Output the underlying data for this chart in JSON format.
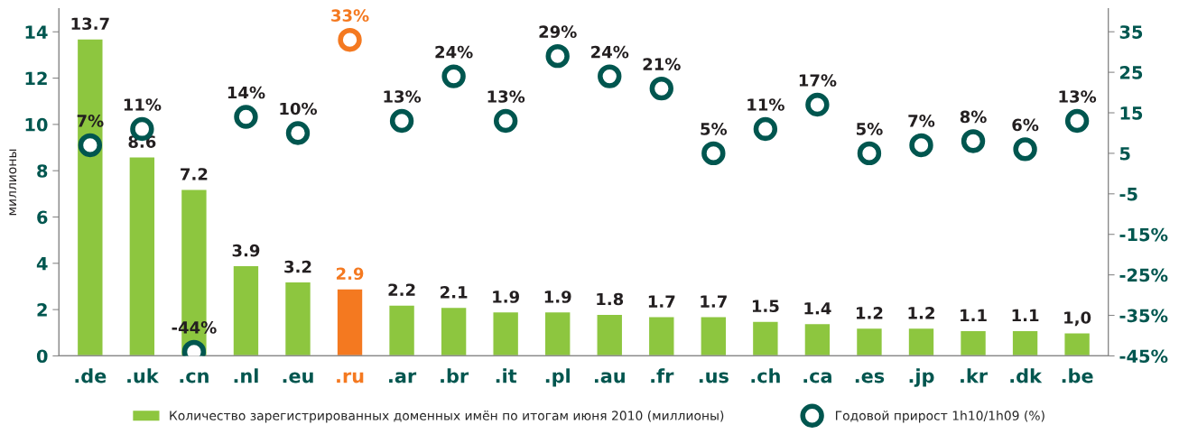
{
  "chart_data": {
    "type": "bar",
    "ylabel": "миллионы",
    "categories": [
      ".de",
      ".uk",
      ".cn",
      ".nl",
      ".eu",
      ".ru",
      ".ar",
      ".br",
      ".it",
      ".pl",
      ".au",
      ".fr",
      ".us",
      ".ch",
      ".ca",
      ".es",
      ".jp",
      ".kr",
      ".dk",
      ".be"
    ],
    "series": [
      {
        "name": "Количество зарегистрированных доменных имён по итогам июня 2010 (миллионы)",
        "color": "#8dc63f",
        "colors": [
          "#8dc63f",
          "#8dc63f",
          "#8dc63f",
          "#8dc63f",
          "#8dc63f",
          "#f47920",
          "#8dc63f",
          "#8dc63f",
          "#8dc63f",
          "#8dc63f",
          "#8dc63f",
          "#8dc63f",
          "#8dc63f",
          "#8dc63f",
          "#8dc63f",
          "#8dc63f",
          "#8dc63f",
          "#8dc63f",
          "#8dc63f",
          "#8dc63f"
        ],
        "values": [
          13.7,
          8.6,
          7.2,
          3.9,
          3.2,
          2.9,
          2.2,
          2.1,
          1.9,
          1.9,
          1.8,
          1.7,
          1.7,
          1.5,
          1.4,
          1.2,
          1.2,
          1.1,
          1.1,
          1.0
        ],
        "value_labels": [
          "13.7",
          "8.6",
          "7.2",
          "3.9",
          "3.2",
          "2.9",
          "2.2",
          "2.1",
          "1.9",
          "1.9",
          "1.8",
          "1.7",
          "1.7",
          "1.5",
          "1.4",
          "1.2",
          "1.2",
          "1.1",
          "1.1",
          "1,0"
        ]
      },
      {
        "type": "scatter",
        "axis": "y2",
        "name": "Годовой прирост 1h10/1h09 (%)",
        "color": "#00564f",
        "colors": [
          "#00564f",
          "#00564f",
          "#00564f",
          "#00564f",
          "#00564f",
          "#f47920",
          "#00564f",
          "#00564f",
          "#00564f",
          "#00564f",
          "#00564f",
          "#00564f",
          "#00564f",
          "#00564f",
          "#00564f",
          "#00564f",
          "#00564f",
          "#00564f",
          "#00564f",
          "#00564f"
        ],
        "values": [
          7,
          11,
          -44,
          14,
          10,
          33,
          13,
          24,
          13,
          29,
          24,
          21,
          5,
          11,
          17,
          5,
          7,
          8,
          6,
          13
        ],
        "value_labels": [
          "7%",
          "11%",
          "-44%",
          "14%",
          "10%",
          "33%",
          "13%",
          "24%",
          "13%",
          "29%",
          "24%",
          "21%",
          "5%",
          "11%",
          "17%",
          "5%",
          "7%",
          "8%",
          "6%",
          "13%"
        ]
      }
    ],
    "ylim": [
      0,
      15
    ],
    "yticks": [
      0,
      2,
      4,
      6,
      8,
      10,
      12,
      14
    ],
    "y2lim": [
      -45,
      40.7
    ],
    "y2ticks": [
      {
        "value": -45,
        "label": "-45%"
      },
      {
        "value": -35,
        "label": "-35%"
      },
      {
        "value": -25,
        "label": "-25%"
      },
      {
        "value": -15,
        "label": "-15%"
      },
      {
        "value": -5,
        "label": "-5"
      },
      5,
      15,
      25,
      35
    ],
    "marker": "circle",
    "grid": false,
    "legend": "bottom"
  }
}
